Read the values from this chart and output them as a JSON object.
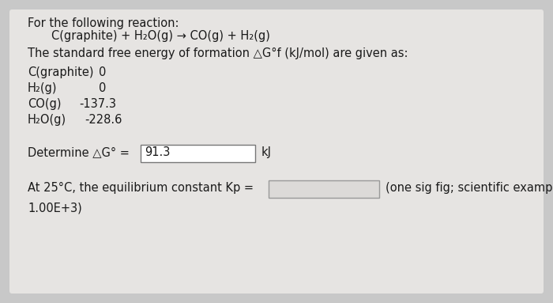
{
  "bg_color": "#c8c8c8",
  "panel_color": "#e6e4e2",
  "text_color": "#1a1a1a",
  "line1": "For the following reaction:",
  "line2": "C(graphite) + H₂O(g) → CO(g) + H₂(g)",
  "line3": "The standard free energy of formation △G°f (kJ/mol) are given as:",
  "species": [
    [
      "C(graphite)  0",
      "C(graphite)",
      "0",
      0.14
    ],
    [
      "H₂(g)",
      "H₂(g)",
      "0",
      0.22
    ],
    [
      "CO(g)",
      "CO(g)",
      "-137.3",
      0.135
    ],
    [
      "H₂O(g)",
      "H₂O(g)",
      "-228.6",
      0.135
    ]
  ],
  "determine_label": "Determine △G° =",
  "determine_value": "91.3",
  "determine_unit": "kJ",
  "kp_label": "At 25°C, the equilibrium constant Kp =",
  "kp_hint": "(one sig fig; scientific example:",
  "kp_example": "1.00E+3)",
  "box_fill": "#dcdad8",
  "box_border": "#999999",
  "answer_box_fill": "#ffffff",
  "answer_box_border": "#777777",
  "fontsize": 10.5,
  "title_fontsize": 10.5
}
